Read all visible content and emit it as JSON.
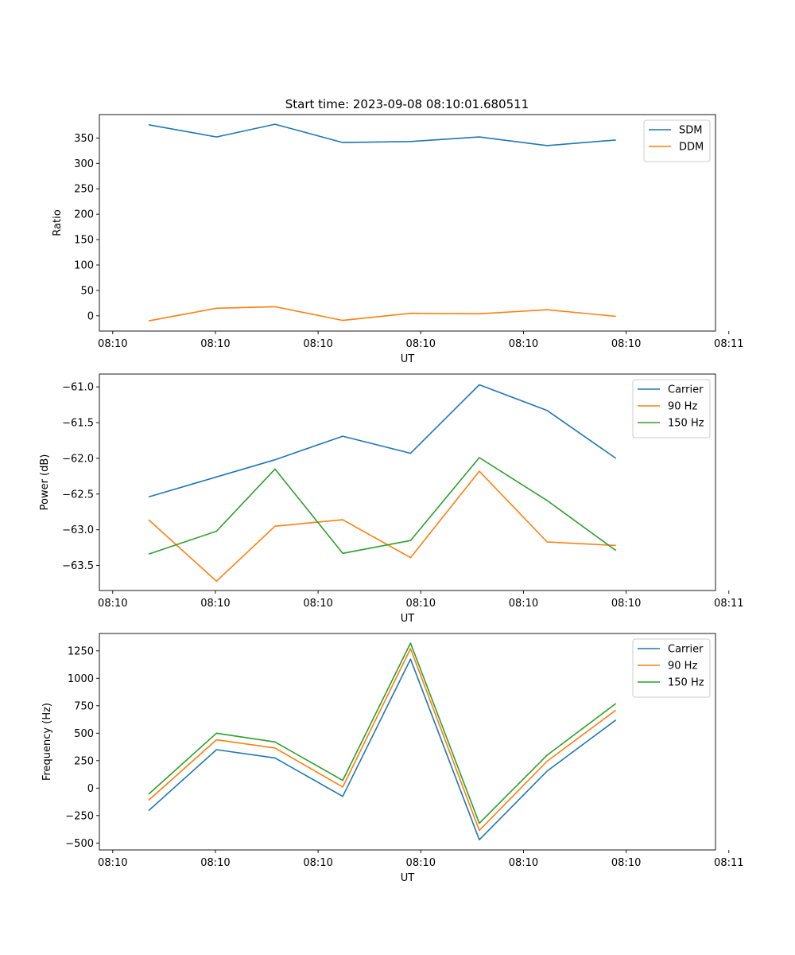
{
  "title": "Start time: 2023-09-08 08:10:01.680511",
  "colors": {
    "blue": "#1f77b4",
    "orange": "#ff7f0e",
    "green": "#2ca02c",
    "axis": "#000000",
    "legend_border": "#cccccc"
  },
  "chart_data": [
    {
      "type": "line",
      "xlabel": "UT",
      "ylabel": "Ratio",
      "xlim": [
        -0.73,
        5.27
      ],
      "ylim": [
        -30,
        396
      ],
      "x": [
        -0.25,
        0.41,
        0.98,
        1.64,
        2.3,
        2.97,
        3.63,
        4.3
      ],
      "xtick_values": [
        -0.6,
        0.4,
        1.4,
        2.4,
        3.4,
        4.4,
        5.4
      ],
      "xtick_labels": [
        "08:10",
        "08:10",
        "08:10",
        "08:10",
        "08:10",
        "08:10",
        "08:11"
      ],
      "yticks": [
        0,
        50,
        100,
        150,
        200,
        250,
        300,
        350
      ],
      "ytick_labels": [
        "0",
        "50",
        "100",
        "150",
        "200",
        "250",
        "300",
        "350"
      ],
      "legend_position": "upper right",
      "series": [
        {
          "name": "SDM",
          "color": "blue",
          "values": [
            376,
            352,
            377,
            341,
            343,
            352,
            335,
            346
          ]
        },
        {
          "name": "DDM",
          "color": "orange",
          "values": [
            -10,
            15,
            18,
            -9,
            5,
            4,
            12,
            -1
          ]
        }
      ]
    },
    {
      "type": "line",
      "xlabel": "UT",
      "ylabel": "Power (dB)",
      "xlim": [
        -0.73,
        5.27
      ],
      "ylim": [
        -63.85,
        -60.82
      ],
      "x": [
        -0.25,
        0.41,
        0.98,
        1.64,
        2.3,
        2.97,
        3.63,
        4.3
      ],
      "xtick_values": [
        -0.6,
        0.4,
        1.4,
        2.4,
        3.4,
        4.4,
        5.4
      ],
      "xtick_labels": [
        "08:10",
        "08:10",
        "08:10",
        "08:10",
        "08:10",
        "08:10",
        "08:11"
      ],
      "yticks": [
        -61.0,
        -61.5,
        -62.0,
        -62.5,
        -63.0,
        -63.5
      ],
      "ytick_labels": [
        "−61.0",
        "−61.5",
        "−62.0",
        "−62.5",
        "−63.0",
        "−63.5"
      ],
      "legend_position": "upper right",
      "series": [
        {
          "name": "Carrier",
          "color": "blue",
          "values": [
            -62.54,
            -62.26,
            -62.02,
            -61.69,
            -61.93,
            -60.97,
            -61.33,
            -62.0
          ]
        },
        {
          "name": "90 Hz",
          "color": "orange",
          "values": [
            -62.86,
            -63.72,
            -62.95,
            -62.86,
            -63.39,
            -62.18,
            -63.17,
            -63.22
          ]
        },
        {
          "name": "150 Hz",
          "color": "green",
          "values": [
            -63.34,
            -63.02,
            -62.15,
            -63.33,
            -63.15,
            -61.99,
            -62.59,
            -63.29
          ]
        }
      ]
    },
    {
      "type": "line",
      "xlabel": "UT",
      "ylabel": "Frequency (Hz)",
      "xlim": [
        -0.73,
        5.27
      ],
      "ylim": [
        -563,
        1408
      ],
      "x": [
        -0.25,
        0.41,
        0.98,
        1.64,
        2.3,
        2.97,
        3.63,
        4.3
      ],
      "xtick_values": [
        -0.6,
        0.4,
        1.4,
        2.4,
        3.4,
        4.4,
        5.4
      ],
      "xtick_labels": [
        "08:10",
        "08:10",
        "08:10",
        "08:10",
        "08:10",
        "08:10",
        "08:11"
      ],
      "yticks": [
        -500,
        -250,
        0,
        250,
        500,
        750,
        1000,
        1250
      ],
      "ytick_labels": [
        "−500",
        "−250",
        "0",
        "250",
        "500",
        "750",
        "1000",
        "1250"
      ],
      "legend_position": "upper right",
      "series": [
        {
          "name": "Carrier",
          "color": "blue",
          "values": [
            -205,
            350,
            275,
            -75,
            1175,
            -470,
            155,
            620
          ]
        },
        {
          "name": "90 Hz",
          "color": "orange",
          "values": [
            -110,
            440,
            365,
            10,
            1270,
            -385,
            245,
            710
          ]
        },
        {
          "name": "150 Hz",
          "color": "green",
          "values": [
            -55,
            500,
            420,
            70,
            1320,
            -320,
            300,
            770
          ]
        }
      ]
    }
  ]
}
